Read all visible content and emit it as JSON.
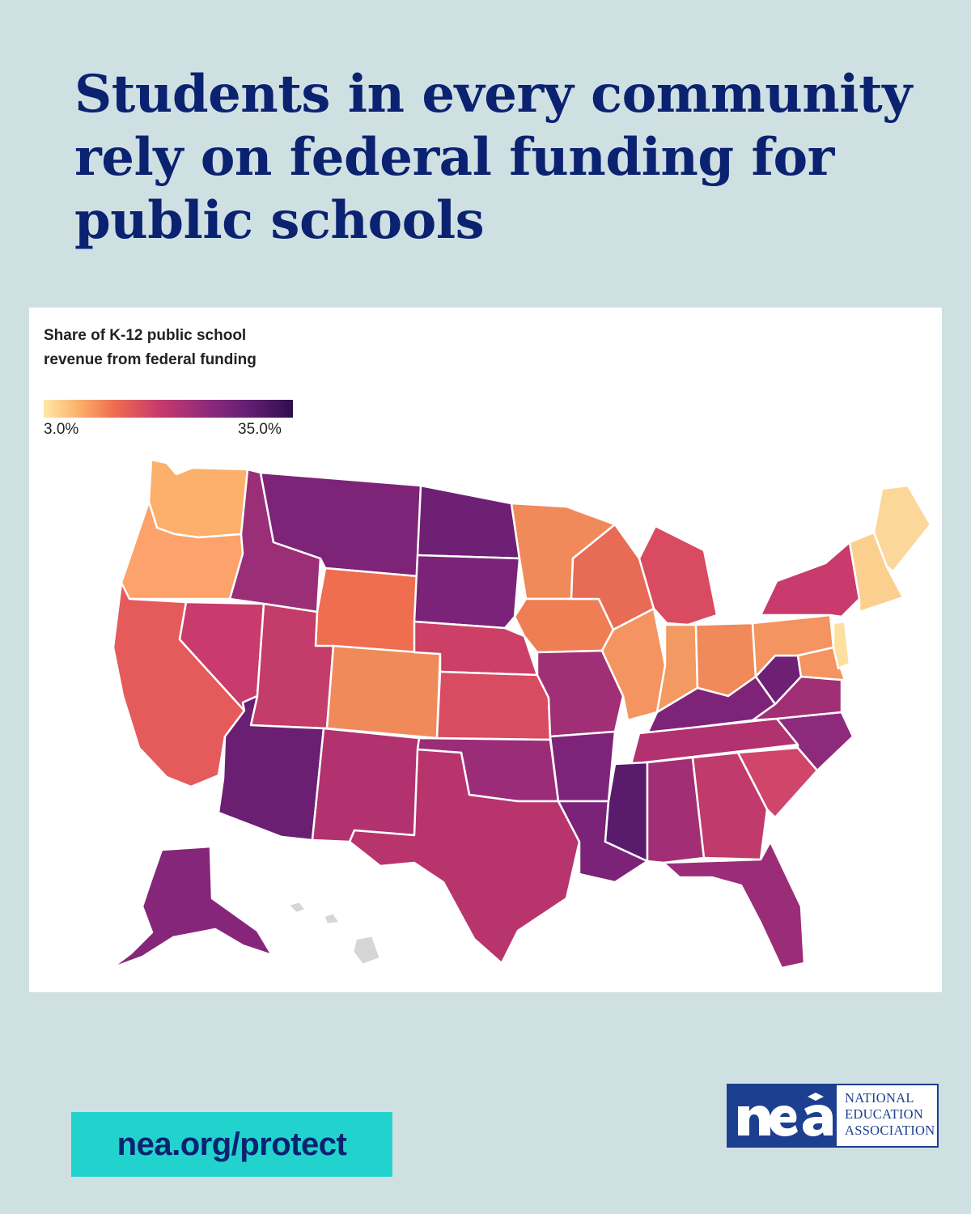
{
  "headline": "Students in every community rely on federal funding for public schools",
  "legend": {
    "title": "Share of K-12 public school revenue from federal funding",
    "min_label": "3.0%",
    "max_label": "35.0%",
    "color_scale": [
      "#fde8a6",
      "#fcb06c",
      "#ef6e4f",
      "#c83b6c",
      "#8e2a7c",
      "#5e1d70",
      "#2f0f4b"
    ],
    "no_data_color": "#d6d6d6"
  },
  "footer": {
    "url": "nea.org/protect",
    "logo_mark": "nea",
    "logo_words": [
      "NATIONAL",
      "EDUCATION",
      "ASSOCIATION"
    ]
  },
  "colors": {
    "background": "#cfe0e3",
    "headline": "#0b2271",
    "url_badge": "#22d3cd",
    "logo_blue": "#1d3f8f"
  },
  "regions": [
    {
      "name": "Washington",
      "fill": "#fcb06c"
    },
    {
      "name": "Oregon",
      "fill": "#fca26a"
    },
    {
      "name": "California",
      "fill": "#e55a5a"
    },
    {
      "name": "Nevada",
      "fill": "#c83b6c"
    },
    {
      "name": "Idaho",
      "fill": "#9a2f78"
    },
    {
      "name": "Montana",
      "fill": "#7e2478"
    },
    {
      "name": "Wyoming",
      "fill": "#ef6e4f"
    },
    {
      "name": "Utah",
      "fill": "#c43c6a"
    },
    {
      "name": "Colorado",
      "fill": "#f08a5a"
    },
    {
      "name": "Arizona",
      "fill": "#6a1f73"
    },
    {
      "name": "New Mexico",
      "fill": "#b1326f"
    },
    {
      "name": "North Dakota",
      "fill": "#6e2074"
    },
    {
      "name": "South Dakota",
      "fill": "#7a2378"
    },
    {
      "name": "Nebraska",
      "fill": "#cc3f67"
    },
    {
      "name": "Kansas",
      "fill": "#d84b60"
    },
    {
      "name": "Oklahoma",
      "fill": "#9b2d78"
    },
    {
      "name": "Texas",
      "fill": "#b8346d"
    },
    {
      "name": "Minnesota",
      "fill": "#f08a5a"
    },
    {
      "name": "Iowa",
      "fill": "#ef7e55"
    },
    {
      "name": "Missouri",
      "fill": "#a02f76"
    },
    {
      "name": "Arkansas",
      "fill": "#7e2478"
    },
    {
      "name": "Louisiana",
      "fill": "#7a2378"
    },
    {
      "name": "Wisconsin",
      "fill": "#e86b55"
    },
    {
      "name": "Illinois",
      "fill": "#f49460"
    },
    {
      "name": "Michigan",
      "fill": "#d84b60"
    },
    {
      "name": "Indiana",
      "fill": "#f29a62"
    },
    {
      "name": "Ohio",
      "fill": "#f08a5a"
    },
    {
      "name": "Kentucky",
      "fill": "#7e2478"
    },
    {
      "name": "Tennessee",
      "fill": "#b1326f"
    },
    {
      "name": "Mississippi",
      "fill": "#5a1b6d"
    },
    {
      "name": "Alabama",
      "fill": "#a22f76"
    },
    {
      "name": "Georgia",
      "fill": "#c03a6b"
    },
    {
      "name": "Florida",
      "fill": "#9b2d78"
    },
    {
      "name": "South Carolina",
      "fill": "#d0456a"
    },
    {
      "name": "North Carolina",
      "fill": "#8e2a7c"
    },
    {
      "name": "Virginia",
      "fill": "#a02f76"
    },
    {
      "name": "West Virginia",
      "fill": "#6e2074"
    },
    {
      "name": "Pennsylvania",
      "fill": "#f49460"
    },
    {
      "name": "New York",
      "fill": "#c83b6c"
    },
    {
      "name": "Maryland",
      "fill": "#f49460"
    },
    {
      "name": "New Jersey",
      "fill": "#fde0a0"
    },
    {
      "name": "New England",
      "fill": "#fbd08e"
    },
    {
      "name": "Maine",
      "fill": "#fcd79a"
    },
    {
      "name": "Alaska",
      "fill": "#86267a"
    },
    {
      "name": "Hawaii",
      "fill": "#d6d6d6"
    }
  ]
}
